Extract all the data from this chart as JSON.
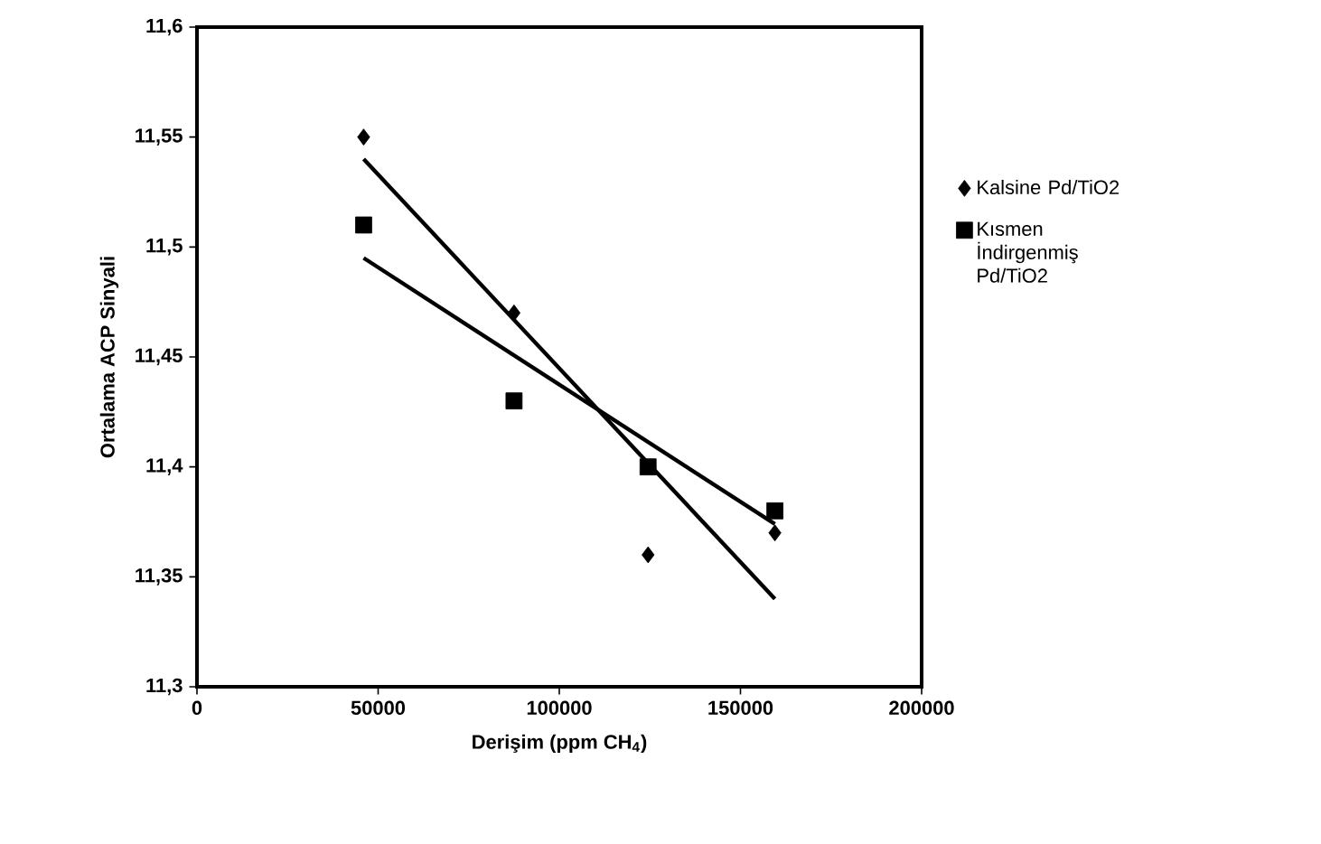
{
  "chart_data": {
    "type": "scatter",
    "xlabel": "Derişim (ppm CH$_{4}$)",
    "ylabel": "Ortalama ACP Sinyali",
    "xlim": [
      0,
      200000
    ],
    "xticks": [
      0,
      50000,
      100000,
      150000,
      200000
    ],
    "ylim": [
      11.3,
      11.6
    ],
    "yticks": [
      {
        "value": 11.3,
        "label": "11,3"
      },
      {
        "value": 11.35,
        "label": "11,35"
      },
      {
        "value": 11.4,
        "label": "11,4"
      },
      {
        "value": 11.45,
        "label": "11,45"
      },
      {
        "value": 11.5,
        "label": "11,5"
      },
      {
        "value": 11.55,
        "label": "11,55"
      },
      {
        "value": 11.6,
        "label": "11,6"
      }
    ],
    "legend": "right",
    "grid": false,
    "series": [
      {
        "name": "Kalsine Pd/TiO2",
        "color": "#000000",
        "marker": "diamond",
        "x": [
          46000,
          87500,
          124500,
          159500
        ],
        "values": [
          11.55,
          11.47,
          11.36,
          11.37
        ]
      },
      {
        "name": "Kısmen İndirgenmiş Pd/TiO2",
        "color": "#000000",
        "marker": "square",
        "x": [
          46000,
          87500,
          124500,
          159500
        ],
        "values": [
          11.51,
          11.43,
          11.4,
          11.38
        ]
      },
      {
        "type": "line",
        "color": "#000000",
        "marker": "none",
        "line_style": "solid",
        "x": [
          46000,
          159500
        ],
        "values": [
          11.54,
          11.34
        ]
      },
      {
        "type": "line",
        "color": "#000000",
        "marker": "none",
        "line_style": "solid",
        "x": [
          46000,
          159500
        ],
        "values": [
          11.495,
          11.374
        ]
      }
    ]
  }
}
